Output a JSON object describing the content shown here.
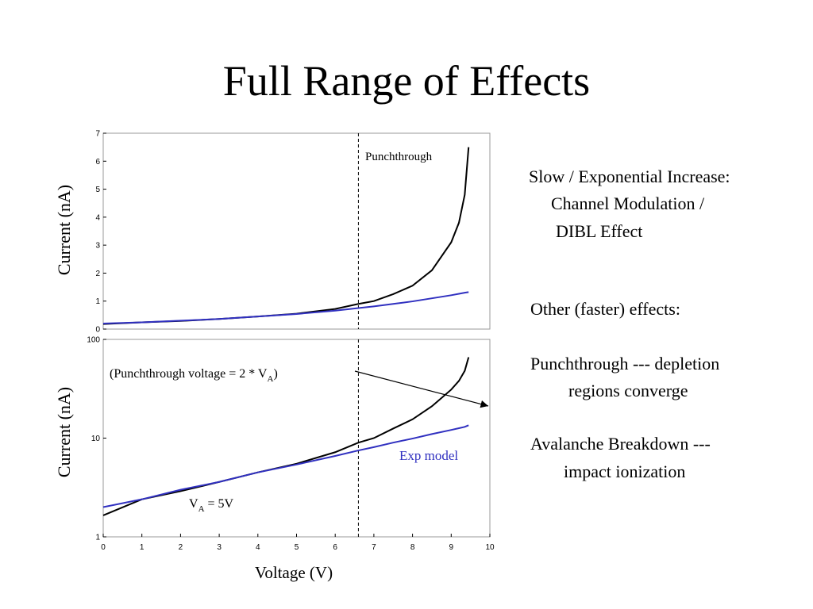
{
  "title": "Full Range of Effects",
  "chart_data": [
    {
      "type": "line",
      "xlim": [
        0,
        10
      ],
      "ylim": [
        0,
        7
      ],
      "yticks": [
        0,
        1,
        2,
        3,
        4,
        5,
        6,
        7
      ],
      "ylabel": "Current (nA)",
      "vline": 6.6,
      "annotations": [
        "Punchthrough"
      ],
      "x": [
        0,
        1,
        2,
        3,
        4,
        5,
        6,
        6.6,
        7,
        7.5,
        8,
        8.5,
        9,
        9.2,
        9.35,
        9.45
      ],
      "series": [
        {
          "color": "#000000",
          "values": [
            0.18,
            0.24,
            0.29,
            0.36,
            0.45,
            0.55,
            0.72,
            0.9,
            1.0,
            1.25,
            1.55,
            2.1,
            3.1,
            3.8,
            4.8,
            6.5
          ]
        },
        {
          "color": "#3030c0",
          "values": [
            0.2,
            0.24,
            0.3,
            0.36,
            0.45,
            0.54,
            0.66,
            0.75,
            0.81,
            0.9,
            0.99,
            1.1,
            1.21,
            1.26,
            1.3,
            1.32
          ]
        }
      ]
    },
    {
      "type": "line",
      "log_y": true,
      "xlim": [
        0,
        10
      ],
      "xticks": [
        0,
        1,
        2,
        3,
        4,
        5,
        6,
        7,
        8,
        9,
        10
      ],
      "ylim": [
        1,
        100
      ],
      "yticks": [
        1,
        10,
        100
      ],
      "ylabel": "Current (nA)",
      "xlabel": "Voltage (V)",
      "vline": 6.6,
      "annotations": [
        {
          "text": "(Punchthrough voltage = 2 * V",
          "sub": "A",
          "after": ")"
        },
        {
          "text": "V",
          "sub": "A",
          "after": " = 5V"
        }
      ],
      "x": [
        0,
        1,
        2,
        3,
        4,
        5,
        6,
        6.6,
        7,
        7.5,
        8,
        8.5,
        9,
        9.2,
        9.35,
        9.45
      ],
      "series": [
        {
          "color": "#000000",
          "values": [
            1.65,
            2.4,
            2.9,
            3.6,
            4.5,
            5.5,
            7.2,
            9,
            10,
            12.5,
            15.5,
            21,
            31,
            38,
            48,
            66
          ]
        },
        {
          "name": "Exp model",
          "color": "#3030c0",
          "values": [
            2.0,
            2.4,
            3.0,
            3.6,
            4.5,
            5.4,
            6.6,
            7.5,
            8.1,
            9.0,
            9.9,
            11,
            12.1,
            12.6,
            13.0,
            13.5
          ]
        }
      ]
    }
  ],
  "text_blocks": [
    [
      "Slow / Exponential Increase:",
      "Channel Modulation /",
      "DIBL Effect"
    ],
    [
      "Other (faster) effects:"
    ],
    [
      "Punchthrough --- depletion",
      "regions converge"
    ],
    [
      "Avalanche Breakdown ---",
      "impact ionization"
    ]
  ]
}
